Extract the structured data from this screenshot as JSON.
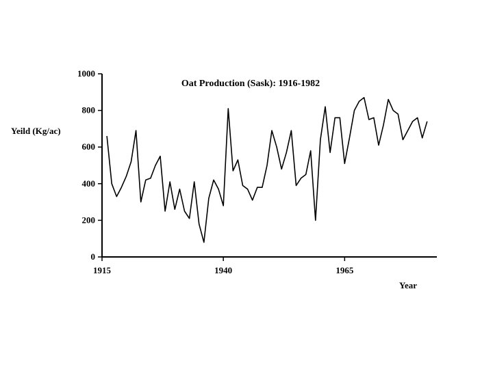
{
  "chart_data": {
    "type": "line",
    "title": "Oat Production (Sask): 1916-1982",
    "xlabel": "Year",
    "ylabel": "Yeild (Kg/ac)",
    "xlim": [
      1915,
      1984
    ],
    "ylim": [
      0,
      1000
    ],
    "x_ticks": [
      1915,
      1940,
      1965
    ],
    "y_ticks": [
      0,
      200,
      400,
      600,
      800,
      1000
    ],
    "grid": false,
    "series": [
      {
        "x": [
          1916,
          1917,
          1918,
          1919,
          1920,
          1921,
          1922,
          1923,
          1924,
          1925,
          1926,
          1927,
          1928,
          1929,
          1930,
          1931,
          1932,
          1933,
          1934,
          1935,
          1936,
          1937,
          1938,
          1939,
          1940,
          1941,
          1942,
          1943,
          1944,
          1945,
          1946,
          1947,
          1948,
          1949,
          1950,
          1951,
          1952,
          1953,
          1954,
          1955,
          1956,
          1957,
          1958,
          1959,
          1960,
          1961,
          1962,
          1963,
          1964,
          1965,
          1966,
          1967,
          1968,
          1969,
          1970,
          1971,
          1972,
          1973,
          1974,
          1975,
          1976,
          1977,
          1978,
          1979,
          1980,
          1981,
          1982
        ],
        "values": [
          660,
          400,
          330,
          380,
          440,
          520,
          690,
          300,
          420,
          430,
          500,
          550,
          250,
          410,
          260,
          370,
          250,
          210,
          410,
          180,
          80,
          320,
          420,
          370,
          280,
          810,
          470,
          530,
          390,
          370,
          310,
          380,
          380,
          500,
          690,
          600,
          480,
          570,
          690,
          390,
          430,
          450,
          580,
          200,
          640,
          820,
          570,
          760,
          760,
          510,
          650,
          800,
          850,
          870,
          750,
          760,
          610,
          720,
          860,
          800,
          780,
          640,
          690,
          740,
          760,
          650,
          740
        ]
      }
    ]
  }
}
